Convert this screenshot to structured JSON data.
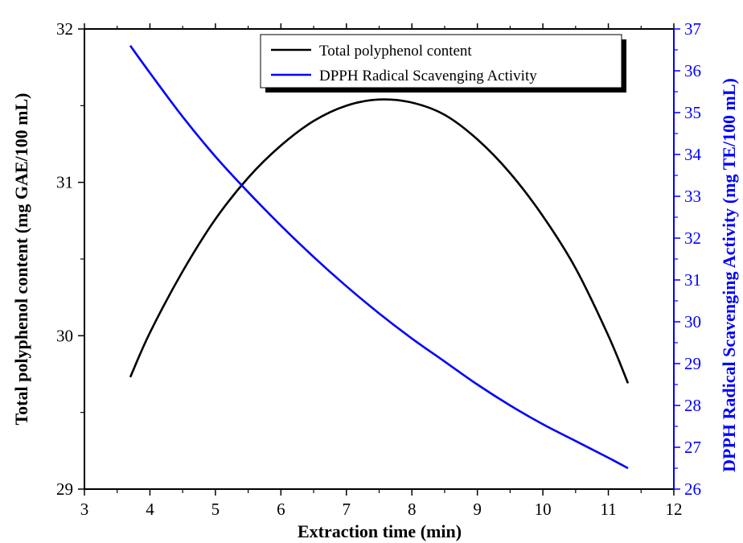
{
  "chart_data": {
    "type": "line",
    "xlabel": "Extraction time (min)",
    "ylabel_left": "Total polyphenol content (mg GAE/100 mL)",
    "ylabel_right": "DPPH Radical Scavenging Activity (mg TE/100 mL)",
    "xlim": [
      3,
      12
    ],
    "ylim_left": [
      29,
      32
    ],
    "ylim_right": [
      26,
      37
    ],
    "x_ticks": [
      "3",
      "4",
      "5",
      "6",
      "7",
      "8",
      "9",
      "10",
      "11",
      "12"
    ],
    "y_left_ticks": [
      "29",
      "30",
      "31",
      "32"
    ],
    "y_right_ticks": [
      "26",
      "27",
      "28",
      "29",
      "30",
      "31",
      "32",
      "33",
      "34",
      "35",
      "36",
      "37"
    ],
    "grid": false,
    "legend_position": "top-right",
    "colors": {
      "tpc": "#000000",
      "dpph": "#0000ff",
      "right_axis": "#0000ff"
    },
    "series": [
      {
        "name": "Total polyphenol content",
        "axis": "left",
        "x": [
          3.7,
          4.0,
          4.5,
          5.0,
          5.5,
          6.0,
          6.5,
          7.0,
          7.5,
          8.0,
          8.5,
          9.0,
          9.5,
          10.0,
          10.5,
          11.0,
          11.3
        ],
        "values": [
          29.73,
          30.02,
          30.42,
          30.76,
          31.03,
          31.24,
          31.4,
          31.5,
          31.54,
          31.52,
          31.44,
          31.28,
          31.06,
          30.78,
          30.44,
          30.0,
          29.69
        ]
      },
      {
        "name": "DPPH Radical Scavenging Activity",
        "axis": "right",
        "x": [
          3.7,
          4.0,
          4.5,
          5.0,
          5.5,
          6.0,
          6.5,
          7.0,
          7.5,
          8.0,
          8.5,
          9.0,
          9.5,
          10.0,
          10.5,
          11.0,
          11.3
        ],
        "values": [
          36.6,
          35.95,
          34.9,
          33.95,
          33.1,
          32.3,
          31.55,
          30.85,
          30.2,
          29.6,
          29.05,
          28.5,
          28.0,
          27.55,
          27.15,
          26.75,
          26.5
        ]
      }
    ]
  }
}
